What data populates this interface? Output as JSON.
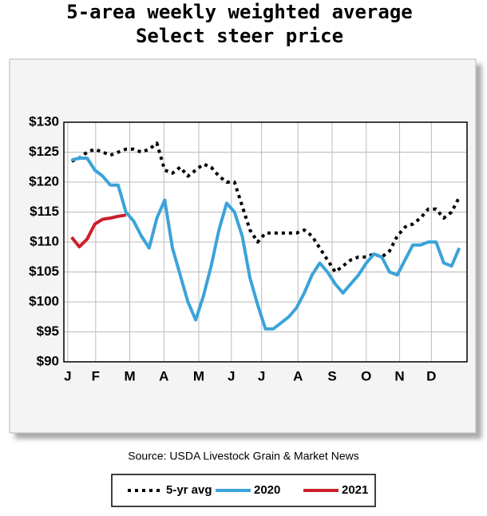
{
  "chart_data": {
    "type": "line",
    "title": [
      "5-area weekly weighted average",
      "Select steer price"
    ],
    "source": "Source: USDA Livestock Grain & Market News",
    "x": [
      1,
      2,
      3,
      4,
      5,
      6,
      7,
      8,
      9,
      10,
      11,
      12,
      13,
      14,
      15,
      16,
      17,
      18,
      19,
      20,
      21,
      22,
      23,
      24,
      25,
      26,
      27,
      28,
      29,
      30,
      31,
      32,
      33,
      34,
      35,
      36,
      37,
      38,
      39,
      40,
      41,
      42,
      43,
      44,
      45,
      46,
      47,
      48,
      49,
      50,
      51
    ],
    "xlim": [
      0,
      52
    ],
    "xticks": [
      {
        "value": 0.5,
        "label": "J"
      },
      {
        "value": 4.1,
        "label": "F"
      },
      {
        "value": 8.5,
        "label": "M"
      },
      {
        "value": 12.9,
        "label": "A"
      },
      {
        "value": 17.4,
        "label": "M"
      },
      {
        "value": 21.6,
        "label": "J"
      },
      {
        "value": 25.5,
        "label": "J"
      },
      {
        "value": 30.2,
        "label": "A"
      },
      {
        "value": 34.6,
        "label": "S"
      },
      {
        "value": 39,
        "label": "O"
      },
      {
        "value": 43.3,
        "label": "N"
      },
      {
        "value": 47.4,
        "label": "D"
      }
    ],
    "ylim": [
      90,
      130
    ],
    "yticks": [
      {
        "value": 90,
        "label": "$90"
      },
      {
        "value": 95,
        "label": "$95"
      },
      {
        "value": 100,
        "label": "$100"
      },
      {
        "value": 105,
        "label": "$105"
      },
      {
        "value": 110,
        "label": "$110"
      },
      {
        "value": 115,
        "label": "$115"
      },
      {
        "value": 120,
        "label": "$120"
      },
      {
        "value": 125,
        "label": "$125"
      },
      {
        "value": 130,
        "label": "$130"
      }
    ],
    "grid": true,
    "series": [
      {
        "name": "5-yr avg",
        "color": "#000000",
        "line_style": "dotted",
        "values": [
          123.5,
          124,
          125,
          125.5,
          125,
          124.5,
          125,
          125.5,
          125.5,
          125,
          125.5,
          126.5,
          122,
          121.5,
          122.5,
          121,
          122,
          123,
          122.5,
          121,
          120,
          120,
          116,
          112,
          110,
          111.5,
          111.5,
          111.5,
          111.5,
          111.5,
          112,
          111,
          109,
          107,
          105,
          106,
          107,
          107.5,
          107.5,
          108,
          107.5,
          108.5,
          111,
          112.5,
          113,
          114,
          115.5,
          115.5,
          114,
          115,
          117.5
        ]
      },
      {
        "name": "2020",
        "color": "#3ba3d9",
        "line_style": "solid",
        "values": [
          123.7,
          124,
          124,
          122,
          121,
          119.5,
          119.5,
          115,
          113.5,
          111,
          109,
          114,
          117,
          109,
          104.5,
          100,
          97,
          101,
          106,
          112,
          116.5,
          115,
          111,
          104,
          99.5,
          95.5,
          95.5,
          96.5,
          97.5,
          99,
          101.5,
          104.5,
          106.5,
          105,
          103,
          101.5,
          103,
          104.5,
          106.5,
          108,
          107.5,
          105,
          104.5,
          107,
          109.5,
          109.5,
          110,
          110,
          106.5,
          106,
          109
        ]
      },
      {
        "name": "2021",
        "color": "#cc1f2b",
        "line_style": "solid",
        "values": [
          110.8,
          109.2,
          110.5,
          113,
          113.8,
          114,
          114.3,
          114.5,
          null,
          null,
          null,
          null,
          null,
          null,
          null,
          null,
          null,
          null,
          null,
          null,
          null,
          null,
          null,
          null,
          null,
          null,
          null,
          null,
          null,
          null,
          null,
          null,
          null,
          null,
          null,
          null,
          null,
          null,
          null,
          null,
          null,
          null,
          null,
          null,
          null,
          null,
          null,
          null,
          null,
          null,
          null
        ]
      }
    ]
  }
}
